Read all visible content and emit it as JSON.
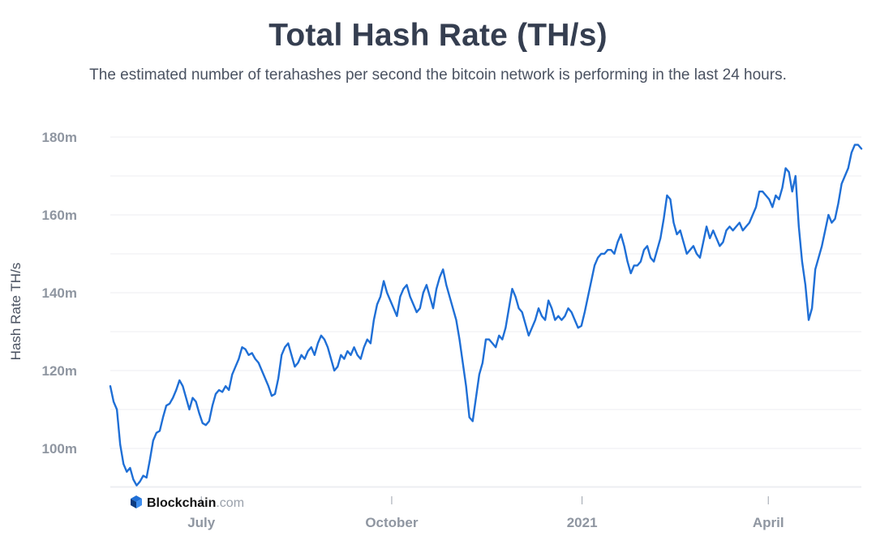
{
  "chart_data": {
    "type": "line",
    "title": "Total Hash Rate (TH/s)",
    "subtitle": "The estimated number of terahashes per second the bitcoin network is performing in the last 24 hours.",
    "xlabel": "",
    "ylabel": "Hash Rate TH/s",
    "x_start": "2020-05-18",
    "x_end": "2021-05-16",
    "xlim": [
      "2020-05-18",
      "2021-05-16"
    ],
    "ylim": [
      90,
      182
    ],
    "y_ticks": [
      {
        "value": 100,
        "label": "100m"
      },
      {
        "value": 120,
        "label": "120m"
      },
      {
        "value": 140,
        "label": "140m"
      },
      {
        "value": 160,
        "label": "160m"
      },
      {
        "value": 180,
        "label": "180m"
      }
    ],
    "x_ticks": [
      {
        "date": "2020-07-01",
        "label": "July"
      },
      {
        "date": "2020-10-01",
        "label": "October"
      },
      {
        "date": "2021-01-01",
        "label": "2021"
      },
      {
        "date": "2021-04-01",
        "label": "April"
      }
    ],
    "grid": true,
    "line_color": "#1f6fd6",
    "series": [
      {
        "values": [
          116.0,
          112.0,
          110.0,
          101.0,
          96.0,
          94.0,
          95.0,
          92.0,
          90.5,
          91.5,
          93.0,
          92.5,
          97.0,
          102.0,
          104.0,
          104.5,
          108.0,
          111.0,
          111.5,
          113.0,
          115.0,
          117.5,
          116.0,
          113.0,
          110.0,
          113.0,
          112.0,
          109.0,
          106.5,
          106.0,
          107.0,
          111.0,
          114.0,
          115.0,
          114.5,
          116.0,
          115.0,
          119.0,
          121.0,
          123.0,
          126.0,
          125.5,
          124.0,
          124.5,
          123.0,
          122.0,
          120.0,
          118.0,
          116.0,
          113.5,
          114.0,
          118.0,
          124.0,
          126.0,
          127.0,
          124.0,
          121.0,
          122.0,
          124.0,
          123.0,
          125.0,
          126.0,
          124.0,
          127.0,
          129.0,
          128.0,
          126.0,
          123.0,
          120.0,
          121.0,
          124.0,
          123.0,
          125.0,
          124.0,
          126.0,
          124.0,
          123.0,
          126.0,
          128.0,
          127.0,
          133.0,
          137.0,
          139.0,
          143.0,
          140.0,
          138.0,
          136.0,
          134.0,
          139.0,
          141.0,
          142.0,
          139.0,
          137.0,
          135.0,
          136.0,
          140.0,
          142.0,
          139.0,
          136.0,
          141.0,
          144.0,
          146.0,
          142.0,
          139.0,
          136.0,
          133.0,
          128.0,
          122.0,
          116.0,
          108.0,
          107.0,
          113.0,
          119.0,
          122.0,
          128.0,
          128.0,
          127.0,
          126.0,
          129.0,
          128.0,
          131.0,
          136.0,
          141.0,
          139.0,
          136.0,
          135.0,
          132.0,
          129.0,
          131.0,
          133.0,
          136.0,
          134.0,
          133.0,
          138.0,
          136.0,
          133.0,
          134.0,
          133.0,
          134.0,
          136.0,
          135.0,
          133.0,
          131.0,
          131.5,
          135.0,
          139.0,
          143.0,
          147.0,
          149.0,
          150.0,
          150.0,
          151.0,
          151.0,
          150.0,
          153.0,
          155.0,
          152.0,
          148.0,
          145.0,
          147.0,
          147.0,
          148.0,
          151.0,
          152.0,
          149.0,
          148.0,
          151.0,
          154.0,
          159.0,
          165.0,
          164.0,
          158.0,
          155.0,
          156.0,
          153.0,
          150.0,
          151.0,
          152.0,
          150.0,
          149.0,
          153.0,
          157.0,
          154.0,
          156.0,
          154.0,
          152.0,
          153.0,
          156.0,
          157.0,
          156.0,
          157.0,
          158.0,
          156.0,
          157.0,
          158.0,
          160.0,
          162.0,
          166.0,
          166.0,
          165.0,
          164.0,
          162.0,
          165.0,
          164.0,
          167.0,
          172.0,
          171.0,
          166.0,
          170.0,
          157.0,
          148.0,
          142.0,
          133.0,
          136.0,
          146.0,
          149.0,
          152.0,
          156.0,
          160.0,
          158.0,
          159.0,
          163.0,
          168.0,
          170.0,
          172.0,
          176.0,
          178.0,
          178.0,
          177.0
        ]
      }
    ]
  },
  "branding": {
    "logo_name": "Blockchain",
    "logo_suffix": ".com"
  }
}
